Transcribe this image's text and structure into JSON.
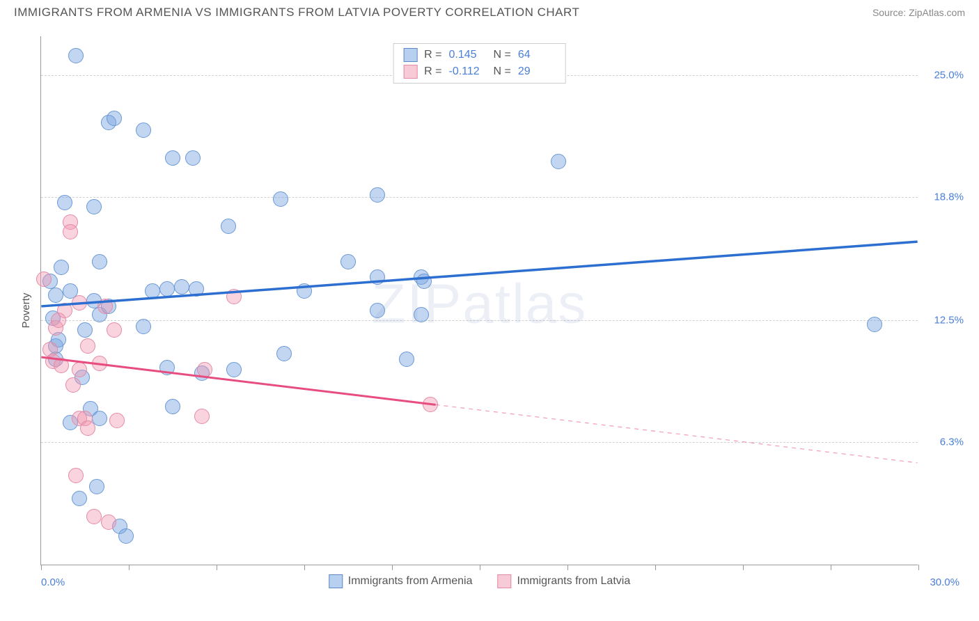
{
  "header": {
    "title": "IMMIGRANTS FROM ARMENIA VS IMMIGRANTS FROM LATVIA POVERTY CORRELATION CHART",
    "source": "Source: ZipAtlas.com"
  },
  "chart": {
    "type": "scatter",
    "ylabel": "Poverty",
    "watermark": "ZIPatlas",
    "xlim": [
      0,
      30
    ],
    "ylim": [
      0,
      27
    ],
    "x_axis_labels": {
      "left": "0.0%",
      "right": "30.0%"
    },
    "y_gridlines": [
      {
        "value": 6.3,
        "label": "6.3%"
      },
      {
        "value": 12.5,
        "label": "12.5%"
      },
      {
        "value": 18.8,
        "label": "18.8%"
      },
      {
        "value": 25.0,
        "label": "25.0%"
      }
    ],
    "x_ticks_count": 11,
    "background_color": "#ffffff",
    "grid_color": "#d0d0d0",
    "axis_color": "#999999",
    "series": [
      {
        "name": "Immigrants from Armenia",
        "color_fill": "rgba(120,165,225,0.45)",
        "color_stroke": "#6a98d6",
        "swatch_fill": "#b7d0f0",
        "swatch_stroke": "#5c88c8",
        "trend_color": "#2d6fd0",
        "trend_width": 3.5,
        "trend_dashed_from": null,
        "marker_radius": 11,
        "stats": {
          "R": "0.145",
          "N": "64"
        },
        "trendline": {
          "x1": 0,
          "y1": 13.2,
          "x2": 30,
          "y2": 16.5
        },
        "points": [
          {
            "x": 0.3,
            "y": 14.5
          },
          {
            "x": 0.4,
            "y": 12.6
          },
          {
            "x": 0.5,
            "y": 11.2
          },
          {
            "x": 0.5,
            "y": 10.5
          },
          {
            "x": 0.5,
            "y": 13.8
          },
          {
            "x": 0.6,
            "y": 11.5
          },
          {
            "x": 0.7,
            "y": 15.2
          },
          {
            "x": 0.8,
            "y": 18.5
          },
          {
            "x": 1.0,
            "y": 14.0
          },
          {
            "x": 1.0,
            "y": 7.3
          },
          {
            "x": 1.2,
            "y": 26.0
          },
          {
            "x": 1.3,
            "y": 3.4
          },
          {
            "x": 1.4,
            "y": 9.6
          },
          {
            "x": 1.5,
            "y": 12.0
          },
          {
            "x": 1.7,
            "y": 8.0
          },
          {
            "x": 1.8,
            "y": 18.3
          },
          {
            "x": 1.8,
            "y": 13.5
          },
          {
            "x": 1.9,
            "y": 4.0
          },
          {
            "x": 2.0,
            "y": 7.5
          },
          {
            "x": 2.0,
            "y": 15.5
          },
          {
            "x": 2.0,
            "y": 12.8
          },
          {
            "x": 2.3,
            "y": 22.6
          },
          {
            "x": 2.3,
            "y": 13.2
          },
          {
            "x": 2.5,
            "y": 22.8
          },
          {
            "x": 2.7,
            "y": 2.0
          },
          {
            "x": 2.9,
            "y": 1.5
          },
          {
            "x": 3.5,
            "y": 12.2
          },
          {
            "x": 3.5,
            "y": 22.2
          },
          {
            "x": 3.8,
            "y": 14.0
          },
          {
            "x": 4.3,
            "y": 10.1
          },
          {
            "x": 4.3,
            "y": 14.1
          },
          {
            "x": 4.5,
            "y": 20.8
          },
          {
            "x": 4.5,
            "y": 8.1
          },
          {
            "x": 4.8,
            "y": 14.2
          },
          {
            "x": 5.2,
            "y": 20.8
          },
          {
            "x": 5.3,
            "y": 14.1
          },
          {
            "x": 5.5,
            "y": 9.8
          },
          {
            "x": 6.4,
            "y": 17.3
          },
          {
            "x": 6.6,
            "y": 10.0
          },
          {
            "x": 8.2,
            "y": 18.7
          },
          {
            "x": 8.3,
            "y": 10.8
          },
          {
            "x": 9.0,
            "y": 14.0
          },
          {
            "x": 10.5,
            "y": 15.5
          },
          {
            "x": 11.5,
            "y": 18.9
          },
          {
            "x": 11.5,
            "y": 13.0
          },
          {
            "x": 11.5,
            "y": 14.7
          },
          {
            "x": 12.5,
            "y": 10.5
          },
          {
            "x": 13.0,
            "y": 12.8
          },
          {
            "x": 13.0,
            "y": 14.7
          },
          {
            "x": 13.1,
            "y": 14.5
          },
          {
            "x": 17.7,
            "y": 20.6
          },
          {
            "x": 28.5,
            "y": 12.3
          }
        ]
      },
      {
        "name": "Immigrants from Latvia",
        "color_fill": "rgba(240,150,175,0.42)",
        "color_stroke": "#e38ba6",
        "swatch_fill": "#f6cad6",
        "swatch_stroke": "#e589a4",
        "trend_color": "#e84d80",
        "trend_width": 3,
        "trend_dashed_from": 13.5,
        "marker_radius": 11,
        "stats": {
          "R": "-0.112",
          "N": "29"
        },
        "trendline": {
          "x1": 0,
          "y1": 10.6,
          "x2": 30,
          "y2": 5.2
        },
        "points": [
          {
            "x": 0.1,
            "y": 14.6
          },
          {
            "x": 0.3,
            "y": 11.0
          },
          {
            "x": 0.4,
            "y": 10.4
          },
          {
            "x": 0.5,
            "y": 12.1
          },
          {
            "x": 0.6,
            "y": 12.5
          },
          {
            "x": 0.7,
            "y": 10.2
          },
          {
            "x": 0.8,
            "y": 13.0
          },
          {
            "x": 1.0,
            "y": 17.5
          },
          {
            "x": 1.0,
            "y": 17.0
          },
          {
            "x": 1.1,
            "y": 9.2
          },
          {
            "x": 1.2,
            "y": 4.6
          },
          {
            "x": 1.3,
            "y": 10.0
          },
          {
            "x": 1.3,
            "y": 7.5
          },
          {
            "x": 1.3,
            "y": 13.4
          },
          {
            "x": 1.5,
            "y": 7.5
          },
          {
            "x": 1.6,
            "y": 7.0
          },
          {
            "x": 1.6,
            "y": 11.2
          },
          {
            "x": 1.8,
            "y": 2.5
          },
          {
            "x": 2.0,
            "y": 10.3
          },
          {
            "x": 2.2,
            "y": 13.2
          },
          {
            "x": 2.3,
            "y": 2.2
          },
          {
            "x": 2.5,
            "y": 12.0
          },
          {
            "x": 2.6,
            "y": 7.4
          },
          {
            "x": 5.5,
            "y": 7.6
          },
          {
            "x": 5.6,
            "y": 10.0
          },
          {
            "x": 6.6,
            "y": 13.7
          },
          {
            "x": 13.3,
            "y": 8.2
          }
        ]
      }
    ],
    "legend_bottom": [
      {
        "label": "Immigrants from Armenia",
        "series": 0
      },
      {
        "label": "Immigrants from Latvia",
        "series": 1
      }
    ]
  }
}
